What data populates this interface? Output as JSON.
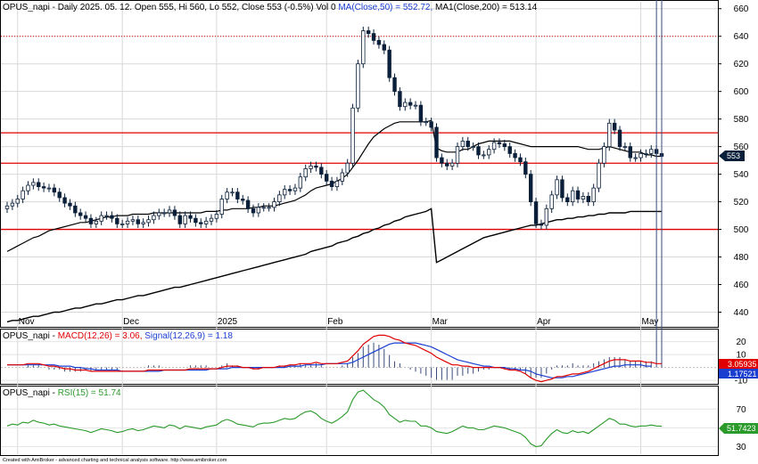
{
  "header": {
    "main": {
      "prefix": "OPUS_napi - Daily 2025. 05. 12. Open 555, Hi 560, Lo 552, Close 553 (-0.5%) Vol 0 ",
      "ma50": "MA(Close,50) = 552.72,",
      "ma200": " MA1(Close,200) = 513.14"
    },
    "macd": {
      "prefix": "OPUS_napi - ",
      "macd": "MACD(12,26) = 3.06,",
      "signal": " Signal(12,26,9) = 1.18"
    },
    "rsi": {
      "prefix": "OPUS_napi - ",
      "rsi": "RSI(15) = 51.74"
    }
  },
  "price_tag": "553",
  "macd_tags": {
    "macd": "3.05935",
    "signal": "1.17521"
  },
  "rsi_tag": "51.7423",
  "credit": "Created with AmiBroker - advanced charting and technical analysis software. http://www.amibroker.com",
  "colors": {
    "up": "#ffffff",
    "down": "#0a1f3a",
    "ma": "#000000",
    "hline": "#e00000",
    "macd": "#e00000",
    "signal": "#1a3fd0",
    "rsi": "#2a9a2a"
  },
  "chart_data": [
    {
      "type": "candlestick",
      "panel": "price",
      "ylim": [
        430,
        665
      ],
      "yticks": [
        440,
        460,
        480,
        500,
        520,
        540,
        560,
        580,
        600,
        620,
        640,
        660
      ],
      "month_labels": [
        {
          "label": "Nov",
          "index": 2
        },
        {
          "label": "Dec",
          "index": 22
        },
        {
          "label": "2025",
          "index": 40
        },
        {
          "label": "Feb",
          "index": 61
        },
        {
          "label": "Mar",
          "index": 81
        },
        {
          "label": "Apr",
          "index": 101
        },
        {
          "label": "May",
          "index": 121
        }
      ],
      "horizontal_lines": [
        500,
        548,
        570
      ],
      "dotted_line": 640,
      "close": [
        517,
        519,
        522,
        528,
        532,
        534,
        531,
        530,
        530,
        527,
        523,
        519,
        517,
        512,
        510,
        508,
        504,
        506,
        510,
        510,
        508,
        504,
        504,
        506,
        507,
        504,
        505,
        507,
        510,
        512,
        512,
        514,
        510,
        504,
        510,
        508,
        505,
        504,
        506,
        508,
        511,
        522,
        527,
        527,
        522,
        521,
        515,
        512,
        516,
        516,
        516,
        520,
        525,
        529,
        528,
        530,
        538,
        544,
        546,
        545,
        540,
        535,
        531,
        535,
        541,
        548,
        588,
        620,
        644,
        642,
        637,
        634,
        630,
        610,
        600,
        589,
        592,
        590,
        590,
        578,
        578,
        574,
        552,
        548,
        546,
        548,
        560,
        564,
        560,
        560,
        554,
        554,
        558,
        563,
        562,
        560,
        555,
        552,
        549,
        540,
        520,
        504,
        503,
        515,
        525,
        536,
        523,
        520,
        528,
        522,
        524,
        520,
        530,
        548,
        560,
        577,
        572,
        560,
        560,
        552,
        552,
        555,
        555,
        558,
        555,
        553
      ],
      "ma50": [
        484,
        486,
        488,
        490,
        492,
        494,
        495,
        497,
        499,
        500,
        501,
        502,
        503,
        504,
        505,
        505,
        506,
        507,
        508,
        509,
        509,
        510,
        510,
        510,
        511,
        511,
        511,
        511,
        512,
        512,
        512,
        512,
        512,
        512,
        512,
        512,
        512,
        512,
        513,
        513,
        513,
        514,
        514,
        515,
        515,
        515,
        515,
        516,
        516,
        517,
        517,
        517,
        518,
        519,
        520,
        521,
        523,
        525,
        528,
        530,
        531,
        532,
        533,
        535,
        537,
        540,
        545,
        550,
        556,
        562,
        567,
        570,
        573,
        575,
        577,
        578,
        578,
        578,
        578,
        578,
        578,
        579,
        559,
        557,
        556,
        556,
        556,
        558,
        558,
        560,
        562,
        563,
        564,
        564,
        564,
        564,
        564,
        563,
        562,
        561,
        560,
        560,
        560,
        560,
        560,
        560,
        560,
        560,
        560,
        560,
        559,
        558,
        558,
        558,
        559,
        560,
        559,
        558,
        557,
        556,
        556,
        556,
        554,
        554,
        553,
        553
      ],
      "ma200": [
        433,
        434,
        434,
        435,
        436,
        437,
        437,
        438,
        439,
        440,
        440,
        441,
        442,
        443,
        443,
        444,
        445,
        446,
        446,
        447,
        448,
        449,
        449,
        450,
        451,
        452,
        452,
        453,
        454,
        455,
        456,
        457,
        458,
        458,
        459,
        460,
        461,
        462,
        463,
        464,
        465,
        466,
        467,
        468,
        469,
        470,
        471,
        472,
        473,
        474,
        475,
        476,
        477,
        478,
        479,
        480,
        481,
        482,
        484,
        485,
        486,
        487,
        488,
        490,
        491,
        492,
        494,
        495,
        497,
        498,
        500,
        501,
        503,
        504,
        506,
        507,
        509,
        510,
        511,
        512,
        513,
        515,
        476,
        478,
        480,
        482,
        484,
        486,
        488,
        490,
        492,
        494,
        495,
        496,
        497,
        498,
        499,
        500,
        501,
        502,
        503,
        503,
        504,
        505,
        506,
        507,
        507,
        508,
        508,
        509,
        509,
        510,
        510,
        511,
        511,
        512,
        512,
        512,
        512,
        513,
        513,
        513,
        513,
        513,
        513,
        513
      ]
    },
    {
      "type": "line",
      "panel": "macd",
      "ylim": [
        -12,
        28
      ],
      "yticks": [
        -10,
        0,
        10,
        20
      ],
      "series": [
        {
          "name": "MACD(12,26)",
          "values": [
            2,
            2,
            2,
            2,
            3,
            3,
            3,
            2,
            1,
            1,
            0,
            -1,
            -1,
            -2,
            -2,
            -2,
            -3,
            -3,
            -3,
            -3,
            -3,
            -3,
            -3,
            -3,
            -3,
            -3,
            -3,
            -2,
            -2,
            -2,
            -2,
            -2,
            -2,
            -2,
            -2,
            -1,
            -1,
            -1,
            -1,
            -1,
            -1,
            0,
            1,
            1,
            1,
            0,
            0,
            -1,
            -1,
            0,
            0,
            0,
            1,
            1,
            2,
            2,
            3,
            3,
            3,
            4,
            3,
            3,
            3,
            3,
            4,
            5,
            9,
            13,
            18,
            21,
            24,
            25,
            25,
            24,
            22,
            21,
            19,
            18,
            17,
            15,
            13,
            11,
            8,
            6,
            4,
            2,
            2,
            1,
            1,
            0,
            0,
            0,
            0,
            0,
            0,
            -1,
            -2,
            -2,
            -3,
            -5,
            -8,
            -10,
            -11,
            -10,
            -9,
            -7,
            -7,
            -6,
            -5,
            -5,
            -4,
            -3,
            -1,
            1,
            3,
            5,
            6,
            6,
            6,
            5,
            5,
            5,
            4,
            4,
            3,
            3
          ]
        },
        {
          "name": "Signal(12,26,9)",
          "values": [
            2,
            2,
            2,
            2,
            2,
            2,
            2,
            2,
            2,
            2,
            1,
            1,
            1,
            0,
            0,
            -1,
            -1,
            -2,
            -2,
            -2,
            -2,
            -2,
            -3,
            -3,
            -3,
            -3,
            -3,
            -3,
            -3,
            -3,
            -2,
            -2,
            -2,
            -2,
            -2,
            -2,
            -2,
            -2,
            -2,
            -1,
            -1,
            -1,
            -1,
            0,
            0,
            0,
            0,
            0,
            0,
            0,
            0,
            0,
            0,
            0,
            1,
            1,
            1,
            2,
            2,
            2,
            2,
            3,
            3,
            3,
            3,
            3,
            4,
            6,
            8,
            10,
            12,
            14,
            16,
            18,
            19,
            19,
            19,
            19,
            19,
            18,
            17,
            16,
            14,
            12,
            10,
            8,
            6,
            5,
            4,
            3,
            2,
            1,
            1,
            0,
            0,
            0,
            -1,
            -1,
            -2,
            -2,
            -3,
            -5,
            -6,
            -7,
            -8,
            -8,
            -8,
            -7,
            -7,
            -6,
            -5,
            -4,
            -3,
            -2,
            -1,
            0,
            1,
            1,
            2,
            2,
            2,
            2,
            1,
            1
          ]
        }
      ],
      "last_values": {
        "macd": 3.05935,
        "signal": 1.17521
      }
    },
    {
      "type": "line",
      "panel": "rsi",
      "ylim": [
        22,
        92
      ],
      "yticks": [
        30,
        50,
        70
      ],
      "series": [
        {
          "name": "RSI(15)",
          "values": [
            52,
            54,
            53,
            56,
            55,
            58,
            56,
            55,
            53,
            54,
            52,
            51,
            50,
            49,
            48,
            47,
            45,
            47,
            49,
            48,
            47,
            45,
            46,
            48,
            49,
            47,
            48,
            50,
            52,
            51,
            50,
            53,
            52,
            49,
            52,
            51,
            50,
            49,
            51,
            52,
            53,
            57,
            59,
            57,
            54,
            53,
            52,
            51,
            54,
            55,
            55,
            56,
            58,
            60,
            59,
            60,
            64,
            67,
            68,
            65,
            60,
            57,
            55,
            58,
            62,
            67,
            80,
            88,
            90,
            85,
            80,
            77,
            72,
            64,
            60,
            56,
            58,
            57,
            57,
            52,
            52,
            50,
            46,
            45,
            44,
            46,
            49,
            52,
            50,
            50,
            48,
            48,
            50,
            52,
            51,
            50,
            48,
            46,
            44,
            40,
            33,
            30,
            31,
            38,
            44,
            48,
            45,
            44,
            47,
            45,
            46,
            44,
            48,
            52,
            56,
            60,
            58,
            54,
            54,
            52,
            51,
            52,
            52,
            53,
            52,
            51.74
          ]
        }
      ],
      "last_value": 51.7423
    }
  ]
}
